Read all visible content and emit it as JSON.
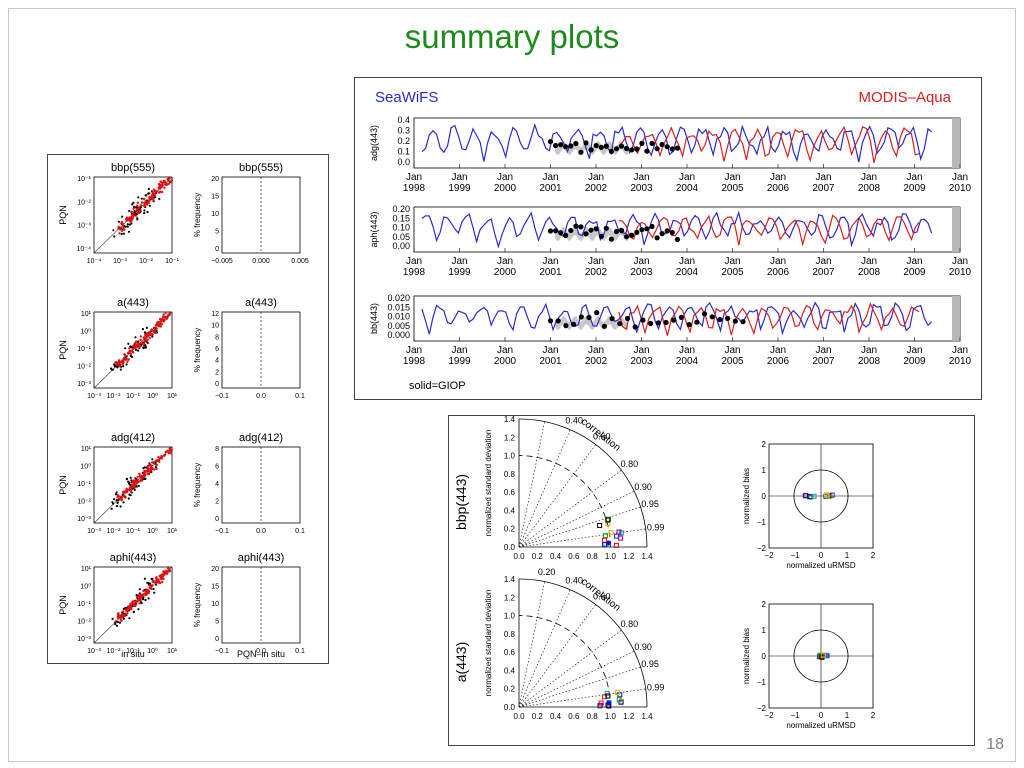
{
  "slide": {
    "title": "summary plots",
    "page_number": "18"
  },
  "left_panel": {
    "row_titles": [
      [
        "bbp(555)",
        "bbp(555)"
      ],
      [
        "a(443)",
        "a(443)"
      ],
      [
        "adg(412)",
        "adg(412)"
      ],
      [
        "aphi(443)",
        "aphi(443)"
      ]
    ],
    "scatter_ylabel": "PQN",
    "hist_ylabel": "% frequency",
    "scatter_xlabel": "in situ",
    "hist_xlabel": "PQN–in situ",
    "scatter_xticks": [
      [
        "10⁻⁴",
        "10⁻³",
        "10⁻²",
        "10⁻¹"
      ],
      [
        "10⁻³",
        "10⁻²",
        "10⁻¹",
        "10⁰",
        "10¹"
      ],
      [
        "10⁻³",
        "10⁻²",
        "10⁻¹",
        "10⁰",
        "10¹"
      ],
      [
        "10⁻³",
        "10⁻²",
        "10⁻¹",
        "10⁰",
        "10¹"
      ]
    ],
    "scatter_yticks": [
      [
        "10⁻¹",
        "10⁻²",
        "10⁻³",
        "10⁻⁴"
      ],
      [
        "10¹",
        "10⁰",
        "10⁻¹",
        "10⁻²",
        "10⁻³"
      ],
      [
        "10¹",
        "10⁰",
        "10⁻¹",
        "10⁻²",
        "10⁻³"
      ],
      [
        "10¹",
        "10⁰",
        "10⁻¹",
        "10⁻²",
        "10⁻³"
      ]
    ],
    "hist_xticks": [
      [
        "−0.005",
        "0.000",
        "0.005"
      ],
      [
        "−0.1",
        "0.0",
        "0.1"
      ],
      [
        "−0.1",
        "0.0",
        "0.1"
      ],
      [
        "−0.1",
        "0.0",
        "0.1"
      ]
    ],
    "hist_yticks": [
      [
        "20",
        "15",
        "10",
        "5",
        "0"
      ],
      [
        "12",
        "10",
        "8",
        "6",
        "4",
        "2",
        "0"
      ],
      [
        "8",
        "6",
        "4",
        "2",
        "0"
      ],
      [
        "20",
        "15",
        "10",
        "5",
        "0"
      ]
    ]
  },
  "timeseries_panel": {
    "sensor_left": "SeaWiFS",
    "sensor_right": "MODIS–Aqua",
    "footnote": "solid=GIOP",
    "x_labels_top": [
      "Jan",
      "Jan",
      "Jan",
      "Jan",
      "Jan",
      "Jan",
      "Jan",
      "Jan",
      "Jan",
      "Jan",
      "Jan",
      "Jan",
      "Jan"
    ],
    "x_labels_bottom": [
      "1998",
      "1999",
      "2000",
      "2001",
      "2002",
      "2003",
      "2004",
      "2005",
      "2006",
      "2007",
      "2008",
      "2009",
      "2010"
    ],
    "plots": [
      {
        "ylabel": "adg(443)",
        "yticks": [
          "0.4",
          "0.3",
          "0.2",
          "0.1",
          "0.0"
        ]
      },
      {
        "ylabel": "aph(443)",
        "yticks": [
          "0.20",
          "0.15",
          "0.10",
          "0.05",
          "0.00"
        ]
      },
      {
        "ylabel": "bb(443)",
        "yticks": [
          "0.020",
          "0.015",
          "0.010",
          "0.005",
          "0.000"
        ]
      }
    ]
  },
  "taylor_panel": {
    "rows": [
      {
        "label": "bbp(443)"
      },
      {
        "label": "a(443)"
      }
    ],
    "taylor_ylabel": "normalized standard deviation",
    "taylor_corr_label": "correlation",
    "taylor_corr_ticks": [
      "0.20",
      "0.40",
      "0.60",
      "0.80",
      "0.90",
      "0.95",
      "0.99"
    ],
    "taylor_axis_ticks": [
      "0.0",
      "0.2",
      "0.4",
      "0.6",
      "0.8",
      "1.0",
      "1.2",
      "1.4"
    ],
    "target_xlabel": "normalized uRMSD",
    "target_ylabel": "normalized bias",
    "target_xticks": [
      "−2",
      "−1",
      "0",
      "1",
      "2"
    ],
    "target_yticks": [
      "2",
      "1",
      "0",
      "−1",
      "−2"
    ]
  },
  "colors": {
    "title_green": "#1b8c1b",
    "seawifs_blue": "#2a2ad0",
    "modis_red": "#d42020",
    "scatter_red": "#e01010",
    "gray_band": "#b8b8b8"
  }
}
